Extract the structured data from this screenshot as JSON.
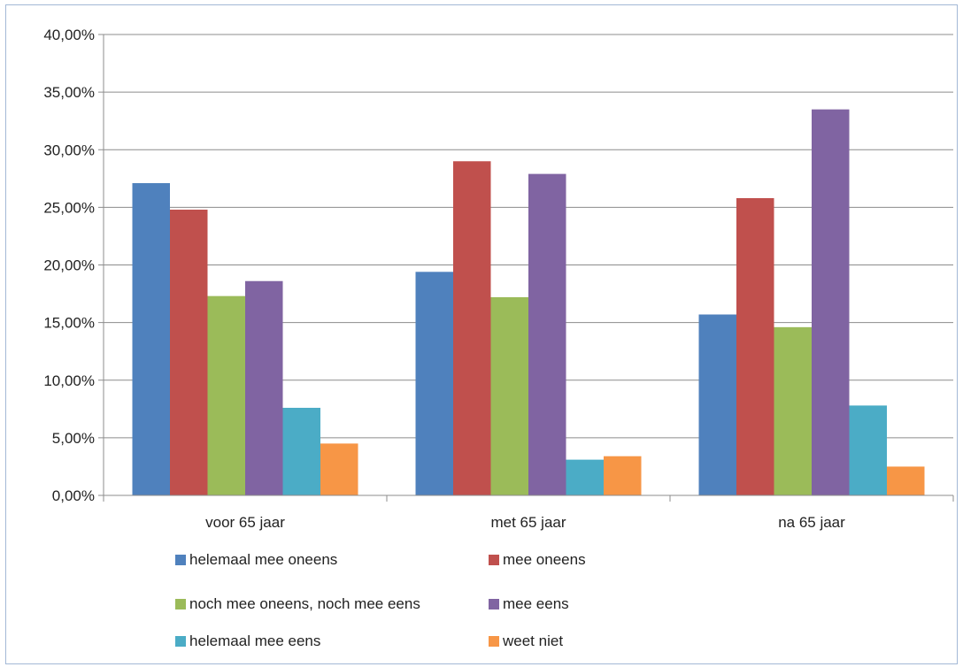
{
  "chart_data": {
    "type": "bar",
    "title": "",
    "xlabel": "",
    "ylabel": "",
    "categories": [
      "voor 65 jaar",
      "met 65 jaar",
      "na 65 jaar"
    ],
    "y_ticks": [
      "0,00%",
      "5,00%",
      "10,00%",
      "15,00%",
      "20,00%",
      "25,00%",
      "30,00%",
      "35,00%",
      "40,00%"
    ],
    "ylim": [
      0,
      40
    ],
    "grid": true,
    "legend_position": "bottom",
    "series": [
      {
        "name": "helemaal mee oneens",
        "color": "#4f81bd",
        "values": [
          27.1,
          19.4,
          15.7
        ]
      },
      {
        "name": "mee oneens",
        "color": "#c0504d",
        "values": [
          24.8,
          29.0,
          25.8
        ]
      },
      {
        "name": "noch mee oneens, noch mee eens",
        "color": "#9bbb59",
        "values": [
          17.3,
          17.2,
          14.6
        ]
      },
      {
        "name": "mee eens",
        "color": "#8064a2",
        "values": [
          18.6,
          27.9,
          33.5
        ]
      },
      {
        "name": "helemaal mee eens",
        "color": "#4bacc6",
        "values": [
          7.6,
          3.1,
          7.8
        ]
      },
      {
        "name": "weet niet",
        "color": "#f79646",
        "values": [
          4.5,
          3.4,
          2.5
        ]
      }
    ]
  }
}
